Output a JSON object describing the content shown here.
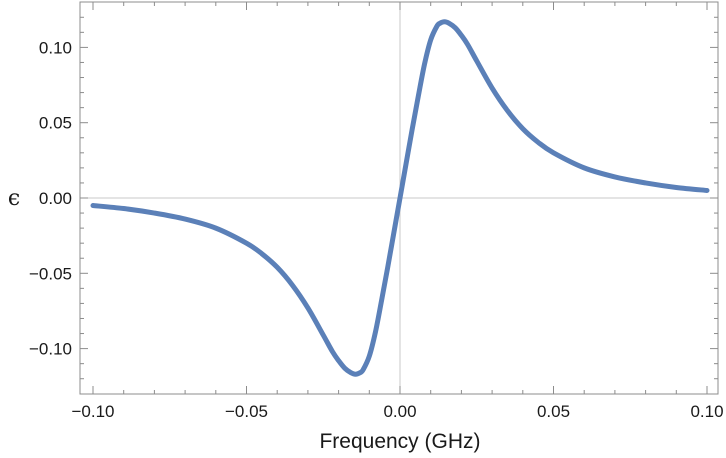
{
  "chart_data": {
    "type": "line",
    "title": "",
    "xlabel": "Frequency (GHz)",
    "ylabel": "ϵ",
    "xlim": [
      -0.102,
      0.102
    ],
    "ylim": [
      -0.128,
      0.13
    ],
    "grid": false,
    "x_ticks": [
      -0.1,
      -0.05,
      0.0,
      0.05,
      0.1
    ],
    "x_tick_labels": [
      "−0.10",
      "−0.05",
      "0.00",
      "0.05",
      "0.10"
    ],
    "y_ticks": [
      -0.1,
      -0.05,
      0.0,
      0.05,
      0.1
    ],
    "y_tick_labels": [
      "−0.10",
      "−0.05",
      "0.00",
      "0.05",
      "0.10"
    ],
    "series": [
      {
        "color": "#5b80b8",
        "x": [
          -0.1,
          -0.09,
          -0.08,
          -0.07,
          -0.06,
          -0.05,
          -0.045,
          -0.04,
          -0.035,
          -0.03,
          -0.025,
          -0.022,
          -0.02,
          -0.018,
          -0.016,
          -0.0145,
          -0.013,
          -0.012,
          -0.01,
          -0.008,
          -0.006,
          -0.004,
          -0.002,
          0.0,
          0.002,
          0.004,
          0.006,
          0.008,
          0.01,
          0.012,
          0.013,
          0.0145,
          0.016,
          0.018,
          0.02,
          0.022,
          0.025,
          0.03,
          0.035,
          0.04,
          0.045,
          0.05,
          0.06,
          0.07,
          0.08,
          0.09,
          0.1
        ],
        "y": [
          -0.005,
          -0.007,
          -0.01,
          -0.014,
          -0.02,
          -0.03,
          -0.037,
          -0.046,
          -0.058,
          -0.073,
          -0.091,
          -0.102,
          -0.108,
          -0.113,
          -0.116,
          -0.117,
          -0.116,
          -0.114,
          -0.105,
          -0.089,
          -0.068,
          -0.046,
          -0.023,
          0.0,
          0.023,
          0.046,
          0.068,
          0.089,
          0.105,
          0.114,
          0.116,
          0.117,
          0.116,
          0.113,
          0.108,
          0.102,
          0.091,
          0.073,
          0.058,
          0.046,
          0.037,
          0.03,
          0.02,
          0.014,
          0.01,
          0.007,
          0.005
        ]
      }
    ]
  }
}
